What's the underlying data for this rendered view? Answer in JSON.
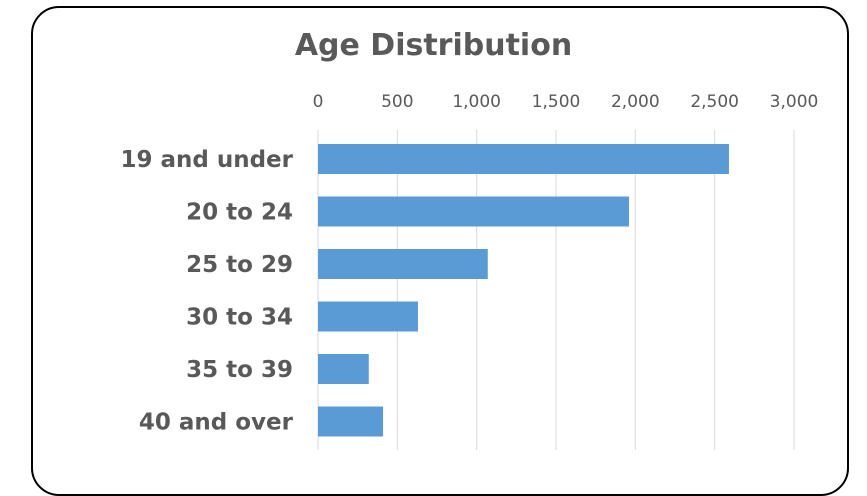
{
  "chart_data": {
    "type": "bar",
    "orientation": "horizontal",
    "title": "Age Distribution",
    "categories": [
      "19 and under",
      "20 to 24",
      "25 to 29",
      "30 to 34",
      "35 to 39",
      "40 and over"
    ],
    "values": [
      2590,
      1960,
      1070,
      630,
      320,
      410
    ],
    "xlim": [
      0,
      3000
    ],
    "x_ticks": [
      0,
      500,
      1000,
      1500,
      2000,
      2500,
      3000
    ],
    "x_tick_labels": [
      "0",
      "500",
      "1,000",
      "1,500",
      "2,000",
      "2,500",
      "3,000"
    ],
    "axis_position": "top",
    "gridlines": true,
    "legend": false,
    "bar_color": "#5B9BD5",
    "gridline_color": "#D9D9D9",
    "text_color": "#595959"
  }
}
